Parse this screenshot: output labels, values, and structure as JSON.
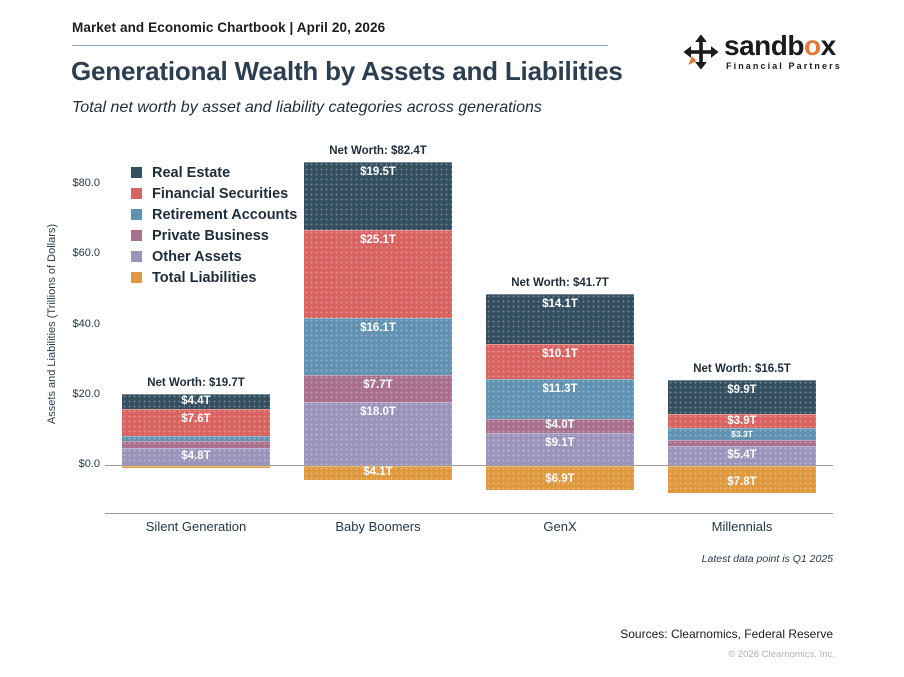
{
  "header": {
    "chartbook_title": "Market and Economic Chartbook | April 20, 2026"
  },
  "logo": {
    "name_part1": "sandb",
    "name_accent": "o",
    "name_part2": "x",
    "tagline": "Financial Partners",
    "accent_color": "#e0783c",
    "icon_color": "#1b1b1b"
  },
  "titles": {
    "title": "Generational Wealth by Assets and Liabilities",
    "subtitle": "Total net worth by asset and liability categories across generations"
  },
  "chart_data": {
    "type": "bar",
    "stacked": true,
    "title": "Generational Wealth by Assets and Liabilities",
    "ylabel": "Assets and Liabilities (Trillions of Dollars)",
    "ylim": [
      0,
      80
    ],
    "grid": false,
    "legend_position": "top-left",
    "yticks": [
      {
        "value": 80,
        "label": "$80.0"
      },
      {
        "value": 60,
        "label": "$60.0"
      },
      {
        "value": 40,
        "label": "$40.0"
      },
      {
        "value": 20,
        "label": "$20.0"
      },
      {
        "value": 0,
        "label": "$0.0"
      }
    ],
    "categories": [
      "Silent Generation",
      "Baby Boomers",
      "GenX",
      "Millennials"
    ],
    "net_worth_labels": [
      "Net Worth: $19.7T",
      "Net Worth: $82.4T",
      "Net Worth: $41.7T",
      "Net Worth: $16.5T"
    ],
    "series": [
      {
        "name": "Real Estate",
        "color": "#334f60",
        "below_baseline": false,
        "values": [
          4.4,
          19.5,
          14.1,
          9.9
        ],
        "labels": [
          "$4.4T",
          "$19.5T",
          "$14.1T",
          "$9.9T"
        ]
      },
      {
        "name": "Financial Securities",
        "color": "#d96361",
        "below_baseline": false,
        "values": [
          7.6,
          25.1,
          10.1,
          3.9
        ],
        "labels": [
          "$7.6T",
          "$25.1T",
          "$10.1T",
          "$3.9T"
        ]
      },
      {
        "name": "Retirement Accounts",
        "color": "#6192b2",
        "below_baseline": false,
        "values": [
          1.6,
          16.1,
          11.3,
          3.3
        ],
        "labels": [
          "",
          "$16.1T",
          "$11.3T",
          "$3.3T"
        ]
      },
      {
        "name": "Private Business",
        "color": "#a9708e",
        "below_baseline": false,
        "values": [
          1.9,
          7.7,
          4.0,
          1.8
        ],
        "labels": [
          "",
          "$7.7T",
          "$4.0T",
          ""
        ]
      },
      {
        "name": "Other Assets",
        "color": "#9c93bb",
        "below_baseline": false,
        "values": [
          4.8,
          18.0,
          9.1,
          5.4
        ],
        "labels": [
          "$4.8T",
          "$18.0T",
          "$9.1T",
          "$5.4T"
        ]
      },
      {
        "name": "Total Liabilities",
        "color": "#e0993f",
        "below_baseline": true,
        "values": [
          0.6,
          4.1,
          6.9,
          7.8
        ],
        "labels": [
          "",
          "$4.1T",
          "$6.9T",
          "$7.8T"
        ]
      }
    ],
    "footnote": "Latest data point is Q1 2025"
  },
  "footer": {
    "latest_note": "Latest data point is Q1 2025",
    "sources": "Sources: Clearnomics, Federal Reserve",
    "copyright": "© 2026 Clearnomics, Inc."
  }
}
